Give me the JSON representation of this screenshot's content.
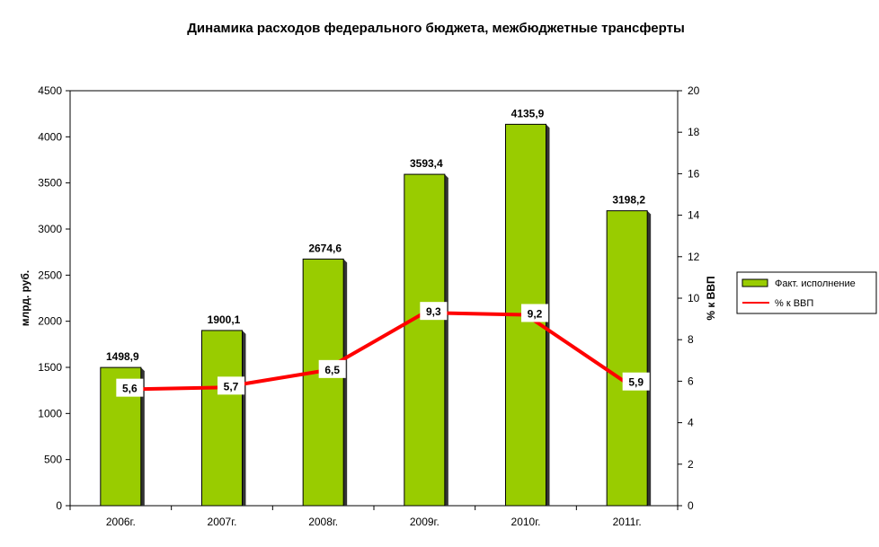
{
  "chart_data": {
    "type": "bar",
    "title": "Динамика расходов федерального бюджета, межбюджетные трансферты",
    "categories": [
      "2006г.",
      "2007г.",
      "2008г.",
      "2009г.",
      "2010г.",
      "2011г."
    ],
    "series": [
      {
        "name": "Факт. исполнение",
        "type": "bar",
        "axis": "left",
        "values": [
          1498.9,
          1900.1,
          2674.6,
          3593.4,
          4135.9,
          3198.2
        ],
        "labels": [
          "1498,9",
          "1900,1",
          "2674,6",
          "3593,4",
          "4135,9",
          "3198,2"
        ],
        "color": "#99cc00"
      },
      {
        "name": "% к ВВП",
        "type": "line",
        "axis": "right",
        "values": [
          5.6,
          5.7,
          6.5,
          9.3,
          9.2,
          5.9
        ],
        "labels": [
          "5,6",
          "5,7",
          "6,5",
          "9,3",
          "9,2",
          "5,9"
        ],
        "color": "#ff0000"
      }
    ],
    "ylabel": "млрд. руб.",
    "y2label": "% к ВВП",
    "ylim": [
      0,
      4500
    ],
    "y2lim": [
      0,
      20
    ],
    "yticks": [
      0,
      500,
      1000,
      1500,
      2000,
      2500,
      3000,
      3500,
      4000,
      4500
    ],
    "y2ticks": [
      0,
      2,
      4,
      6,
      8,
      10,
      12,
      14,
      16,
      18,
      20
    ],
    "grid": false,
    "legend_position": "right"
  }
}
